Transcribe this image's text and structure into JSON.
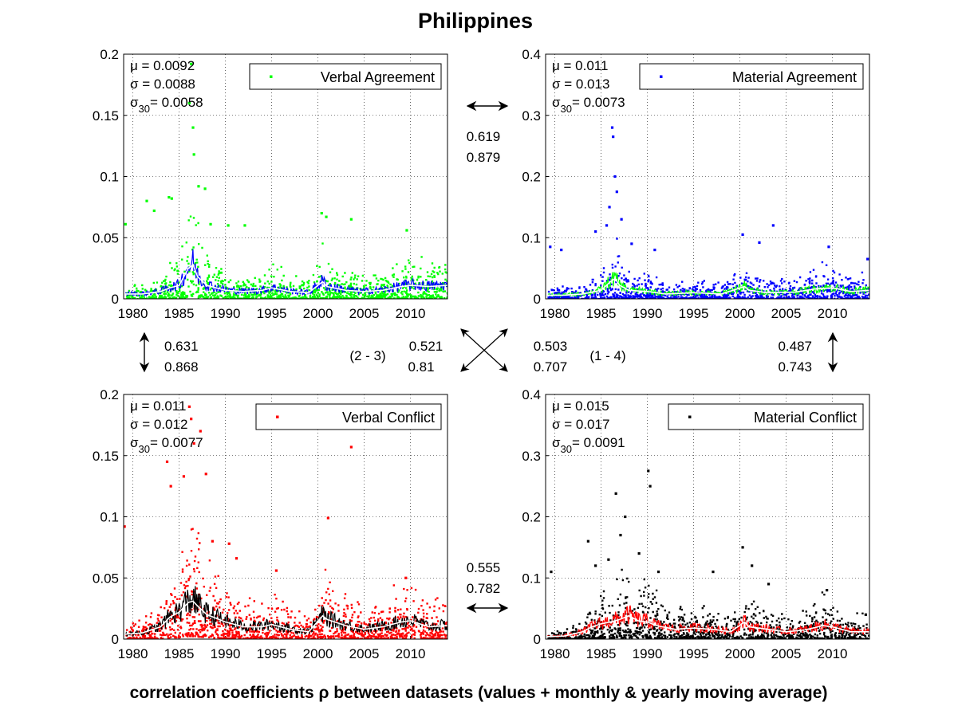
{
  "title": "Philippines",
  "footer": "correlation coefficients ρ between datasets (values + monthly & yearly moving average)",
  "chart_data": [
    {
      "type": "scatter",
      "legend": "Verbal Agreement",
      "series_color": "#00ff00",
      "avg_color": "#0000ff",
      "trend_color": "#ffffff",
      "xlim": [
        1979,
        2014
      ],
      "x_ticks": [
        "1980",
        "1985",
        "1990",
        "1995",
        "2000",
        "2005",
        "2010"
      ],
      "ylim": [
        0,
        0.2
      ],
      "y_ticks": [
        "0",
        "0.05",
        "0.1",
        "0.15",
        "0.2"
      ],
      "grid": true,
      "legend_position": "top-right",
      "stats": {
        "mu": "= 0.0092",
        "sigma": "= 0.0088",
        "sigma30": "= 0.0058"
      },
      "trend": [
        [
          1979,
          0.004
        ],
        [
          1981,
          0.004
        ],
        [
          1983,
          0.006
        ],
        [
          1984,
          0.009
        ],
        [
          1985,
          0.011
        ],
        [
          1986,
          0.025
        ],
        [
          1986.5,
          0.028
        ],
        [
          1987,
          0.018
        ],
        [
          1988,
          0.011
        ],
        [
          1990,
          0.007
        ],
        [
          1992,
          0.006
        ],
        [
          1994,
          0.007
        ],
        [
          1995,
          0.009
        ],
        [
          1997,
          0.006
        ],
        [
          1999,
          0.005
        ],
        [
          2000.5,
          0.014
        ],
        [
          2001,
          0.01
        ],
        [
          2003,
          0.007
        ],
        [
          2005,
          0.006
        ],
        [
          2007,
          0.007
        ],
        [
          2009,
          0.01
        ],
        [
          2010,
          0.011
        ],
        [
          2012,
          0.01
        ],
        [
          2014,
          0.011
        ]
      ],
      "peaks": [
        [
          1979.2,
          0.061
        ],
        [
          1981.5,
          0.08
        ],
        [
          1982.3,
          0.072
        ],
        [
          1983.9,
          0.083
        ],
        [
          1984.2,
          0.082
        ],
        [
          1986.1,
          0.16
        ],
        [
          1986.3,
          0.192
        ],
        [
          1986.5,
          0.14
        ],
        [
          1986.6,
          0.118
        ],
        [
          1987.1,
          0.092
        ],
        [
          1987.8,
          0.09
        ],
        [
          1988.4,
          0.061
        ],
        [
          1990.3,
          0.06
        ],
        [
          1992.1,
          0.06
        ],
        [
          2000.4,
          0.07
        ],
        [
          2000.9,
          0.067
        ],
        [
          2003.6,
          0.065
        ],
        [
          2009.6,
          0.056
        ]
      ]
    },
    {
      "type": "scatter",
      "legend": "Material Agreement",
      "series_color": "#0000ff",
      "avg_color": "#00ff00",
      "trend_color": "#ffffff",
      "xlim": [
        1979,
        2014
      ],
      "x_ticks": [
        "1980",
        "1985",
        "1990",
        "1995",
        "2000",
        "2005",
        "2010"
      ],
      "ylim": [
        0,
        0.4
      ],
      "y_ticks": [
        "0",
        "0.1",
        "0.2",
        "0.3",
        "0.4"
      ],
      "grid": true,
      "legend_position": "top-right",
      "stats": {
        "mu": "= 0.011",
        "sigma": "= 0.013",
        "sigma30": "= 0.0073"
      },
      "trend": [
        [
          1979,
          0.006
        ],
        [
          1981,
          0.006
        ],
        [
          1983,
          0.008
        ],
        [
          1985,
          0.014
        ],
        [
          1986,
          0.028
        ],
        [
          1986.5,
          0.033
        ],
        [
          1987,
          0.022
        ],
        [
          1988,
          0.014
        ],
        [
          1990,
          0.012
        ],
        [
          1992,
          0.008
        ],
        [
          1995,
          0.01
        ],
        [
          1998,
          0.008
        ],
        [
          2000.5,
          0.02
        ],
        [
          2001,
          0.014
        ],
        [
          2003,
          0.01
        ],
        [
          2006,
          0.011
        ],
        [
          2008,
          0.016
        ],
        [
          2010,
          0.018
        ],
        [
          2012,
          0.012
        ],
        [
          2014,
          0.014
        ]
      ],
      "peaks": [
        [
          1979.5,
          0.085
        ],
        [
          1980.7,
          0.08
        ],
        [
          1984.4,
          0.11
        ],
        [
          1985.6,
          0.12
        ],
        [
          1985.9,
          0.15
        ],
        [
          1986.2,
          0.28
        ],
        [
          1986.3,
          0.265
        ],
        [
          1986.5,
          0.2
        ],
        [
          1986.7,
          0.175
        ],
        [
          1987.2,
          0.13
        ],
        [
          1988.3,
          0.09
        ],
        [
          1990.8,
          0.08
        ],
        [
          2000.3,
          0.105
        ],
        [
          2002.1,
          0.092
        ],
        [
          2003.6,
          0.12
        ],
        [
          2009.6,
          0.085
        ],
        [
          2013.8,
          0.065
        ]
      ]
    },
    {
      "type": "scatter",
      "legend": "Verbal Conflict",
      "series_color": "#ff0000",
      "avg_color": "#000000",
      "trend_color": "#ffffff",
      "xlim": [
        1979,
        2014
      ],
      "x_ticks": [
        "1980",
        "1985",
        "1990",
        "1995",
        "2000",
        "2005",
        "2010"
      ],
      "ylim": [
        0,
        0.2
      ],
      "y_ticks": [
        "0",
        "0.05",
        "0.1",
        "0.15",
        "0.2"
      ],
      "grid": true,
      "legend_position": "top-right",
      "stats": {
        "mu": "= 0.011",
        "sigma": "= 0.012",
        "sigma30": "= 0.0077"
      },
      "trend": [
        [
          1979,
          0.004
        ],
        [
          1981,
          0.005
        ],
        [
          1983,
          0.01
        ],
        [
          1984,
          0.018
        ],
        [
          1985,
          0.022
        ],
        [
          1986,
          0.03
        ],
        [
          1986.5,
          0.031
        ],
        [
          1987,
          0.027
        ],
        [
          1988,
          0.02
        ],
        [
          1990,
          0.014
        ],
        [
          1992,
          0.01
        ],
        [
          1994,
          0.01
        ],
        [
          1995,
          0.012
        ],
        [
          1997,
          0.008
        ],
        [
          1999,
          0.006
        ],
        [
          2000.5,
          0.019
        ],
        [
          2001,
          0.016
        ],
        [
          2003,
          0.011
        ],
        [
          2005,
          0.008
        ],
        [
          2007,
          0.01
        ],
        [
          2009,
          0.014
        ],
        [
          2010,
          0.015
        ],
        [
          2012,
          0.01
        ],
        [
          2014,
          0.011
        ]
      ],
      "peaks": [
        [
          1979.1,
          0.092
        ],
        [
          1983.7,
          0.145
        ],
        [
          1984.1,
          0.125
        ],
        [
          1985.5,
          0.133
        ],
        [
          1986.1,
          0.19
        ],
        [
          1986.3,
          0.18
        ],
        [
          1986.6,
          0.16
        ],
        [
          1987.3,
          0.17
        ],
        [
          1987.9,
          0.135
        ],
        [
          1988.6,
          0.08
        ],
        [
          1990.4,
          0.078
        ],
        [
          1991.2,
          0.066
        ],
        [
          1995.5,
          0.056
        ],
        [
          2001.1,
          0.099
        ],
        [
          2003.6,
          0.157
        ],
        [
          2009.5,
          0.05
        ]
      ]
    },
    {
      "type": "scatter",
      "legend": "Material Conflict",
      "series_color": "#000000",
      "avg_color": "#ff0000",
      "trend_color": "#ffffff",
      "xlim": [
        1979,
        2014
      ],
      "x_ticks": [
        "1980",
        "1985",
        "1990",
        "1995",
        "2000",
        "2005",
        "2010"
      ],
      "ylim": [
        0,
        0.4
      ],
      "y_ticks": [
        "0",
        "0.1",
        "0.2",
        "0.3",
        "0.4"
      ],
      "grid": true,
      "legend_position": "top-right",
      "stats": {
        "mu": "= 0.015",
        "sigma": "= 0.017",
        "sigma30": "= 0.0091"
      },
      "trend": [
        [
          1979,
          0.004
        ],
        [
          1981,
          0.005
        ],
        [
          1983,
          0.012
        ],
        [
          1984,
          0.02
        ],
        [
          1985,
          0.025
        ],
        [
          1986,
          0.028
        ],
        [
          1987,
          0.032
        ],
        [
          1988,
          0.038
        ],
        [
          1989,
          0.03
        ],
        [
          1990,
          0.028
        ],
        [
          1991,
          0.022
        ],
        [
          1993,
          0.016
        ],
        [
          1995,
          0.018
        ],
        [
          1997,
          0.016
        ],
        [
          1999,
          0.012
        ],
        [
          2000.5,
          0.028
        ],
        [
          2001,
          0.02
        ],
        [
          2003,
          0.016
        ],
        [
          2005,
          0.012
        ],
        [
          2007,
          0.015
        ],
        [
          2009,
          0.022
        ],
        [
          2010,
          0.02
        ],
        [
          2012,
          0.012
        ],
        [
          2014,
          0.012
        ]
      ],
      "peaks": [
        [
          1979.6,
          0.11
        ],
        [
          1983.6,
          0.16
        ],
        [
          1984.4,
          0.12
        ],
        [
          1985.8,
          0.13
        ],
        [
          1986.6,
          0.238
        ],
        [
          1987.1,
          0.17
        ],
        [
          1987.6,
          0.2
        ],
        [
          1989.1,
          0.14
        ],
        [
          1990.1,
          0.275
        ],
        [
          1990.3,
          0.25
        ],
        [
          1991.2,
          0.11
        ],
        [
          1997.1,
          0.11
        ],
        [
          2000.3,
          0.15
        ],
        [
          2001.3,
          0.12
        ],
        [
          2003.1,
          0.09
        ],
        [
          2009.4,
          0.08
        ],
        [
          2013.6,
          0.04
        ]
      ]
    }
  ],
  "correlations": {
    "top": {
      "values": [
        "0.619",
        "0.879"
      ]
    },
    "left": {
      "values": [
        "0.631",
        "0.868"
      ]
    },
    "right": {
      "values": [
        "0.487",
        "0.743"
      ]
    },
    "bottom": {
      "values": [
        "0.555",
        "0.782"
      ]
    },
    "diag_23": {
      "label": "(2 - 3)",
      "values": [
        "0.521",
        "0.81"
      ]
    },
    "diag_14": {
      "label": "(1 - 4)",
      "values": [
        "0.503",
        "0.707"
      ]
    }
  }
}
